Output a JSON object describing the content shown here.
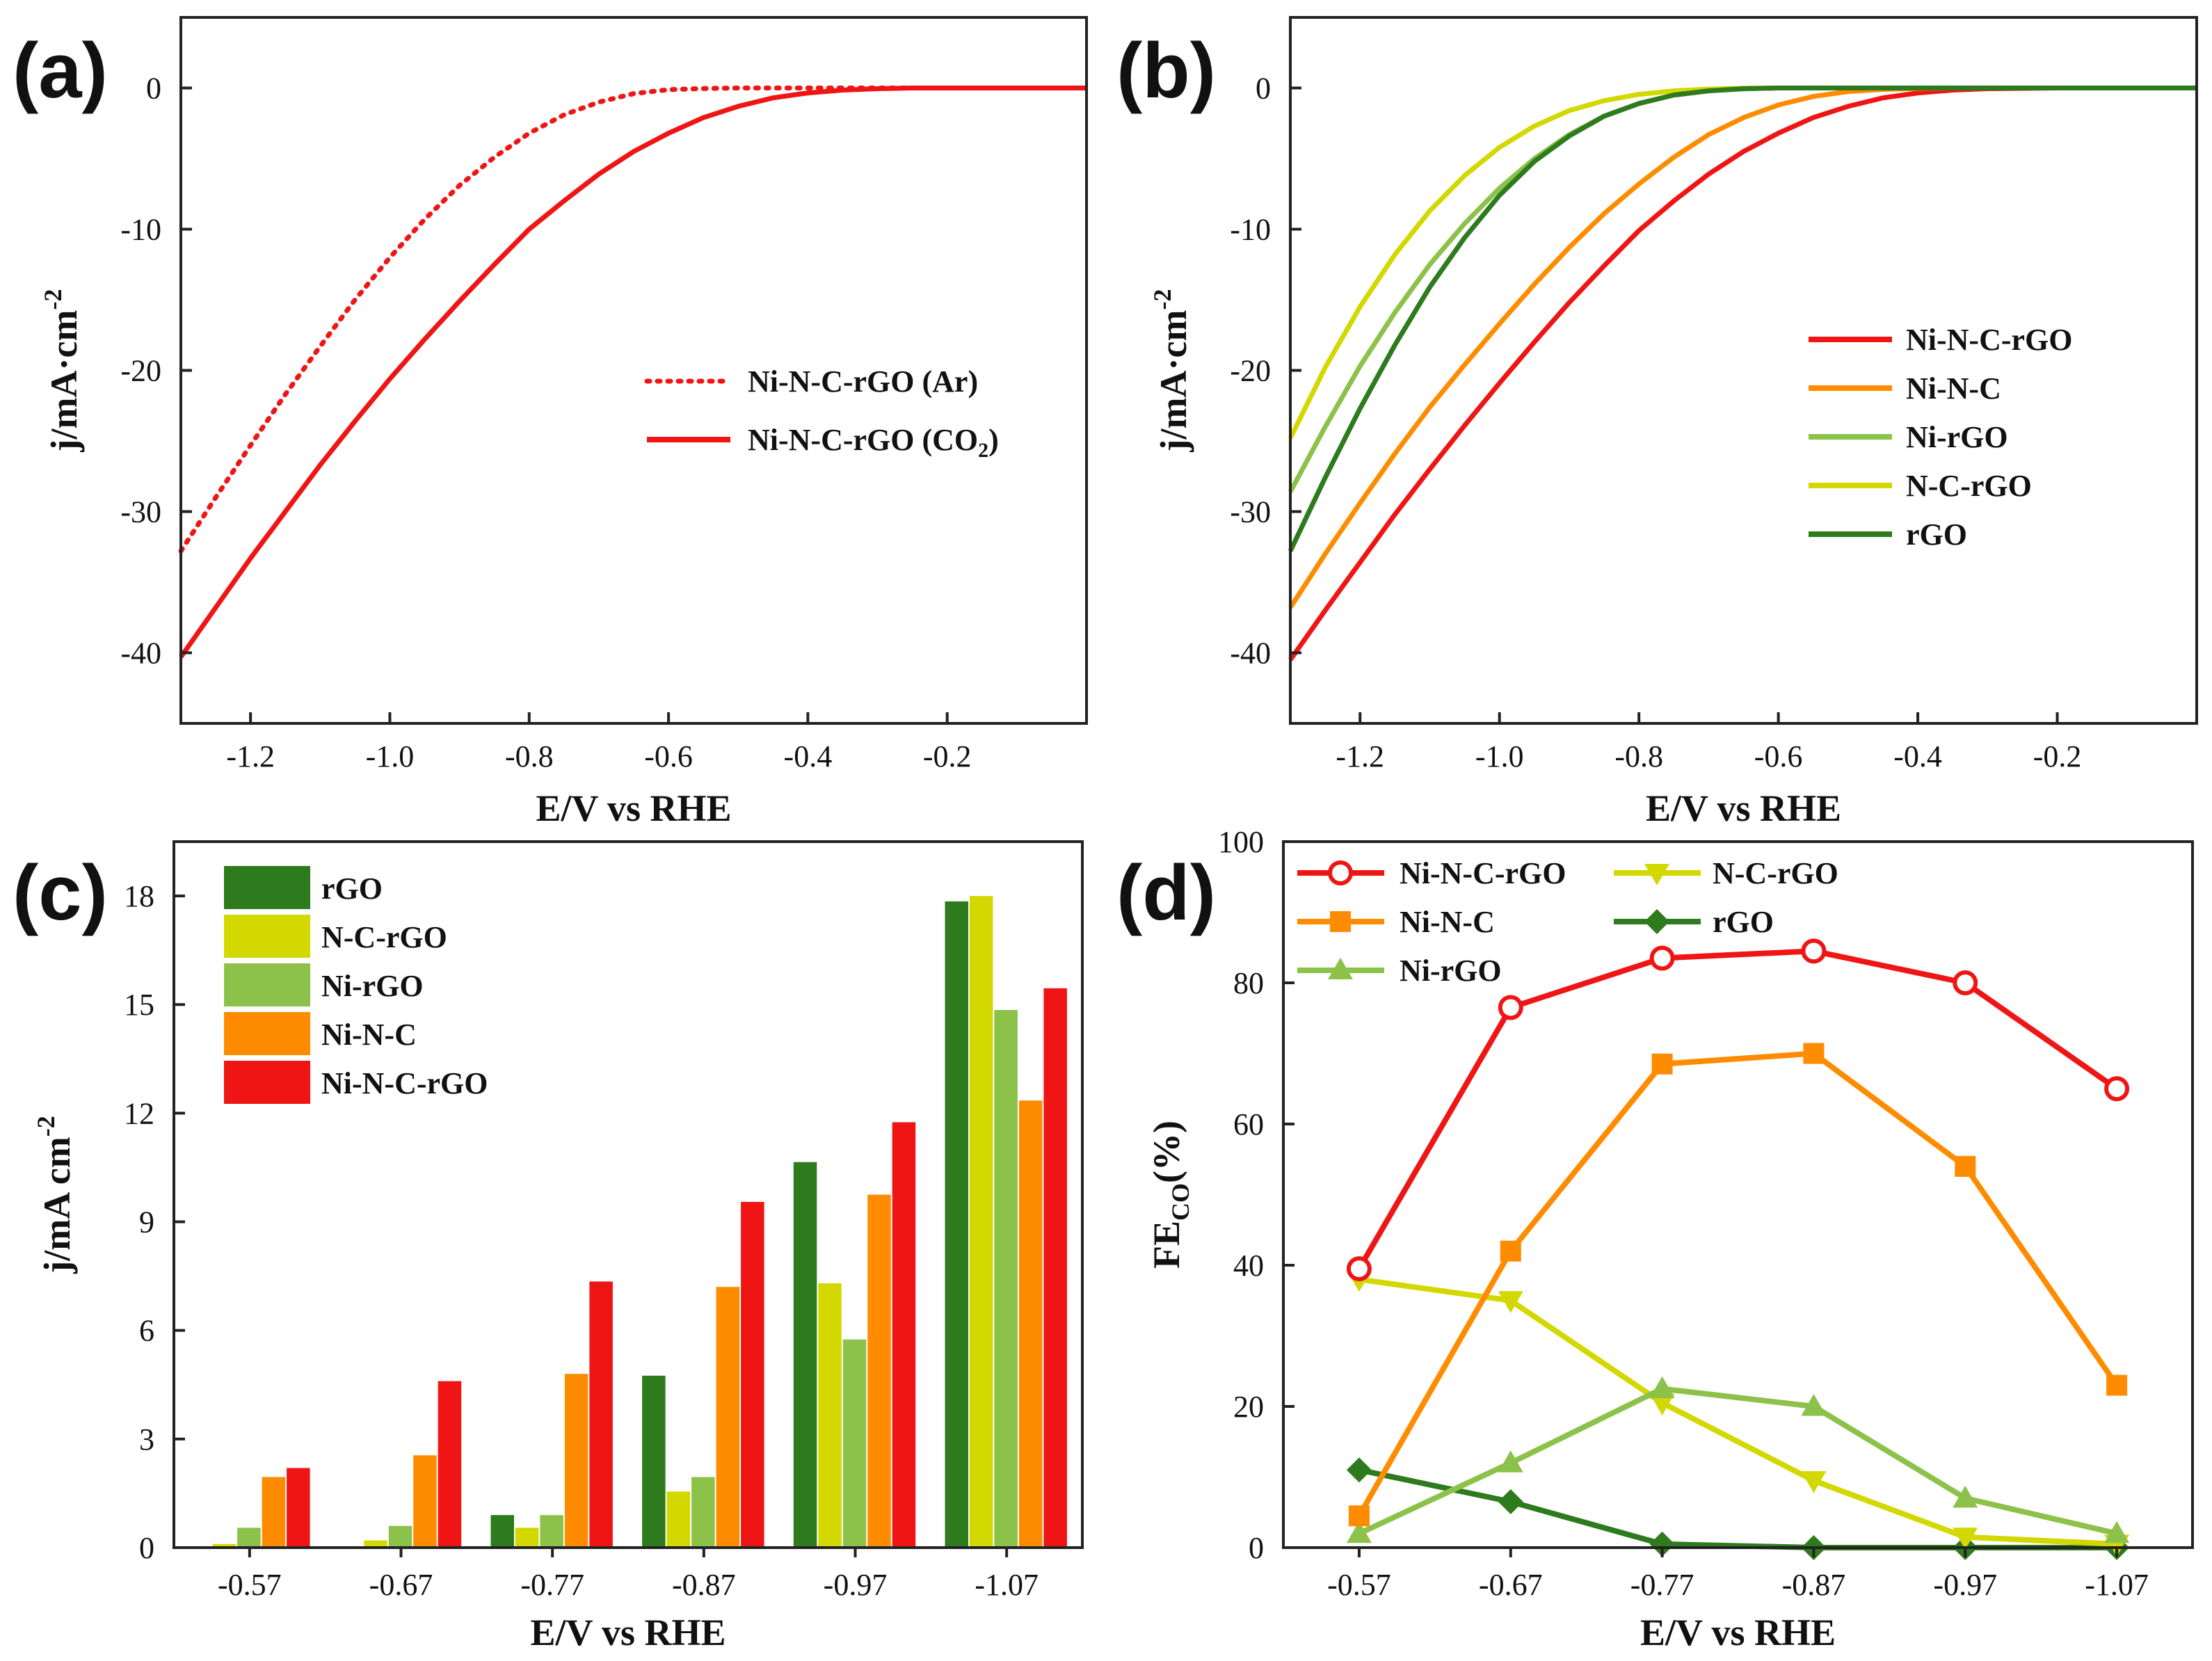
{
  "colors": {
    "red": "#f01515",
    "orange": "#ff8c00",
    "lightgreen": "#8cc24a",
    "yellow": "#d2d800",
    "darkgreen": "#2e7b1e",
    "axis": "#222222"
  },
  "chart_data": [
    {
      "panel": "(a)",
      "type": "line",
      "xlabel": "E/V vs RHE",
      "ylabel": "j/mA·cm",
      "ylabel_sup": "-2",
      "xlim": [
        -1.3,
        0.0
      ],
      "ylim": [
        -45,
        5
      ],
      "xticks": [
        -1.2,
        -1.0,
        -0.8,
        -0.6,
        -0.4,
        -0.2
      ],
      "xtick_labels": [
        "-1.2",
        "-1.0",
        "-0.8",
        "-0.6",
        "-0.4",
        "-0.2"
      ],
      "yticks": [
        0,
        -10,
        -20,
        -30,
        -40
      ],
      "ytick_labels": [
        "0",
        "-10",
        "-20",
        "-30",
        "-40"
      ],
      "series": [
        {
          "name": "Ni-N-C-rGO (Ar)",
          "legend_main": "Ni-N-C-rGO (Ar)",
          "color": "#f01515",
          "dash": "dotted",
          "x": [
            -1.3,
            -1.25,
            -1.2,
            -1.15,
            -1.1,
            -1.05,
            -1.0,
            -0.95,
            -0.9,
            -0.85,
            -0.8,
            -0.75,
            -0.7,
            -0.65,
            -0.6,
            -0.55,
            -0.5,
            -0.45,
            -0.4,
            -0.3,
            -0.2,
            -0.1,
            0.0
          ],
          "y": [
            -32.8,
            -29.0,
            -25.3,
            -21.7,
            -18.3,
            -15.0,
            -12.0,
            -9.3,
            -6.9,
            -4.9,
            -3.2,
            -1.9,
            -1.0,
            -0.4,
            -0.12,
            -0.04,
            0,
            0,
            0,
            0,
            0,
            0,
            0
          ]
        },
        {
          "name": "Ni-N-C-rGO (CO2)",
          "legend_main": "Ni-N-C-rGO (CO",
          "legend_sub": "2",
          "legend_tail": ")",
          "color": "#f01515",
          "dash": "solid",
          "x": [
            -1.3,
            -1.25,
            -1.2,
            -1.15,
            -1.1,
            -1.05,
            -1.0,
            -0.95,
            -0.9,
            -0.85,
            -0.8,
            -0.75,
            -0.7,
            -0.65,
            -0.6,
            -0.55,
            -0.5,
            -0.45,
            -0.4,
            -0.35,
            -0.3,
            -0.25,
            -0.2,
            -0.1,
            0.0
          ],
          "y": [
            -40.3,
            -36.8,
            -33.3,
            -30.0,
            -26.7,
            -23.6,
            -20.6,
            -17.8,
            -15.1,
            -12.5,
            -10.0,
            -8.0,
            -6.1,
            -4.5,
            -3.2,
            -2.1,
            -1.3,
            -0.7,
            -0.35,
            -0.15,
            -0.05,
            0,
            0,
            0,
            0
          ]
        }
      ]
    },
    {
      "panel": "(b)",
      "type": "line",
      "xlabel": "E/V vs RHE",
      "ylabel": "j/mA·cm",
      "ylabel_sup": "-2",
      "xlim": [
        -1.3,
        0.0
      ],
      "ylim": [
        -45,
        5
      ],
      "xticks": [
        -1.2,
        -1.0,
        -0.8,
        -0.6,
        -0.4,
        -0.2
      ],
      "xtick_labels": [
        "-1.2",
        "-1.0",
        "-0.8",
        "-0.6",
        "-0.4",
        "-0.2"
      ],
      "yticks": [
        0,
        -10,
        -20,
        -30,
        -40
      ],
      "ytick_labels": [
        "0",
        "-10",
        "-20",
        "-30",
        "-40"
      ],
      "series": [
        {
          "name": "Ni-N-C-rGO",
          "color": "#f01515",
          "x": [
            -1.3,
            -1.25,
            -1.2,
            -1.15,
            -1.1,
            -1.05,
            -1.0,
            -0.95,
            -0.9,
            -0.85,
            -0.8,
            -0.75,
            -0.7,
            -0.65,
            -0.6,
            -0.55,
            -0.5,
            -0.45,
            -0.4,
            -0.35,
            -0.3,
            -0.2,
            0.0
          ],
          "y": [
            -40.5,
            -37.0,
            -33.6,
            -30.2,
            -27.0,
            -23.9,
            -20.9,
            -18.0,
            -15.2,
            -12.6,
            -10.1,
            -8.0,
            -6.1,
            -4.5,
            -3.2,
            -2.1,
            -1.3,
            -0.7,
            -0.35,
            -0.15,
            -0.05,
            0,
            0
          ]
        },
        {
          "name": "Ni-N-C",
          "color": "#ff8c00",
          "x": [
            -1.3,
            -1.25,
            -1.2,
            -1.15,
            -1.1,
            -1.05,
            -1.0,
            -0.95,
            -0.9,
            -0.85,
            -0.8,
            -0.75,
            -0.7,
            -0.65,
            -0.6,
            -0.55,
            -0.5,
            -0.45,
            -0.4,
            -0.35,
            -0.2,
            0.0
          ],
          "y": [
            -36.8,
            -33.0,
            -29.4,
            -25.9,
            -22.6,
            -19.6,
            -16.7,
            -13.9,
            -11.3,
            -8.9,
            -6.8,
            -4.9,
            -3.3,
            -2.1,
            -1.2,
            -0.6,
            -0.25,
            -0.1,
            -0.03,
            0,
            0,
            0
          ]
        },
        {
          "name": "Ni-rGO",
          "color": "#8cc24a",
          "x": [
            -1.3,
            -1.25,
            -1.2,
            -1.15,
            -1.1,
            -1.05,
            -1.0,
            -0.95,
            -0.9,
            -0.85,
            -0.8,
            -0.75,
            -0.7,
            -0.65,
            -0.6,
            -0.5,
            0.0
          ],
          "y": [
            -28.6,
            -24.0,
            -19.7,
            -15.9,
            -12.5,
            -9.6,
            -7.1,
            -5.0,
            -3.3,
            -2.0,
            -1.1,
            -0.5,
            -0.2,
            -0.06,
            0,
            0,
            0
          ]
        },
        {
          "name": "N-C-rGO",
          "color": "#d2d800",
          "x": [
            -1.3,
            -1.25,
            -1.2,
            -1.15,
            -1.1,
            -1.05,
            -1.0,
            -0.95,
            -0.9,
            -0.85,
            -0.8,
            -0.75,
            -0.7,
            -0.65,
            -0.6,
            -0.5,
            0.0
          ],
          "y": [
            -24.8,
            -19.8,
            -15.5,
            -11.8,
            -8.7,
            -6.2,
            -4.2,
            -2.7,
            -1.6,
            -0.9,
            -0.45,
            -0.2,
            -0.08,
            -0.02,
            0,
            0,
            0
          ]
        },
        {
          "name": "rGO",
          "color": "#2e7b1e",
          "x": [
            -1.3,
            -1.25,
            -1.2,
            -1.15,
            -1.1,
            -1.05,
            -1.0,
            -0.95,
            -0.9,
            -0.85,
            -0.8,
            -0.75,
            -0.7,
            -0.65,
            -0.6,
            -0.5,
            0.0
          ],
          "y": [
            -32.8,
            -27.6,
            -22.7,
            -18.2,
            -14.1,
            -10.6,
            -7.6,
            -5.2,
            -3.4,
            -2.0,
            -1.1,
            -0.5,
            -0.2,
            -0.05,
            0,
            0,
            0
          ]
        }
      ]
    },
    {
      "panel": "(c)",
      "type": "bar",
      "xlabel": "E/V vs RHE",
      "ylabel": "j/mA cm",
      "ylabel_sup": "-2",
      "ylim": [
        0,
        19.5
      ],
      "yticks": [
        0,
        3,
        6,
        9,
        12,
        15,
        18
      ],
      "ytick_labels": [
        "0",
        "3",
        "6",
        "9",
        "12",
        "15",
        "18"
      ],
      "categories": [
        "-0.57",
        "-0.67",
        "-0.77",
        "-0.87",
        "-0.97",
        "-1.07"
      ],
      "series": [
        {
          "name": "rGO",
          "color": "#2e7b1e",
          "values": [
            0.0,
            0.0,
            0.9,
            4.75,
            10.65,
            17.85
          ]
        },
        {
          "name": "N-C-rGO",
          "color": "#d2d800",
          "values": [
            0.1,
            0.2,
            0.55,
            1.55,
            7.3,
            18.0
          ]
        },
        {
          "name": "Ni-rGO",
          "color": "#8cc24a",
          "values": [
            0.55,
            0.6,
            0.9,
            1.95,
            5.75,
            14.85
          ]
        },
        {
          "name": "Ni-N-C",
          "color": "#ff8c00",
          "values": [
            1.95,
            2.55,
            4.8,
            7.2,
            9.75,
            12.35
          ]
        },
        {
          "name": "Ni-N-C-rGO",
          "color": "#f01515",
          "values": [
            2.2,
            4.6,
            7.35,
            9.55,
            11.75,
            15.45
          ]
        }
      ]
    },
    {
      "panel": "(d)",
      "type": "line",
      "xlabel": "E/V vs RHE",
      "ylabel": "FE",
      "ylabel_sub": "CO",
      "ylabel_tail": "(%)",
      "ylim": [
        0,
        100
      ],
      "yticks": [
        0,
        20,
        40,
        60,
        80,
        100
      ],
      "ytick_labels": [
        "0",
        "20",
        "40",
        "60",
        "80",
        "100"
      ],
      "categories": [
        "-0.57",
        "-0.67",
        "-0.77",
        "-0.87",
        "-0.97",
        "-1.07"
      ],
      "series": [
        {
          "name": "Ni-N-C-rGO",
          "color": "#f01515",
          "marker": "circle",
          "values": [
            39.5,
            76.5,
            83.5,
            84.5,
            80.0,
            65.0
          ]
        },
        {
          "name": "Ni-N-C",
          "color": "#ff8c00",
          "marker": "square",
          "values": [
            4.5,
            42.0,
            68.5,
            70.0,
            54.0,
            23.0
          ]
        },
        {
          "name": "Ni-rGO",
          "color": "#8cc24a",
          "marker": "triangle-up",
          "values": [
            2.0,
            12.0,
            22.5,
            20.0,
            7.0,
            2.0
          ]
        },
        {
          "name": "N-C-rGO",
          "color": "#d2d800",
          "marker": "triangle-down",
          "values": [
            38.0,
            35.0,
            20.5,
            9.5,
            1.5,
            0.5
          ]
        },
        {
          "name": "rGO",
          "color": "#2e7b1e",
          "marker": "diamond",
          "values": [
            11.0,
            6.5,
            0.5,
            0.0,
            0.0,
            0.0
          ]
        }
      ]
    }
  ]
}
